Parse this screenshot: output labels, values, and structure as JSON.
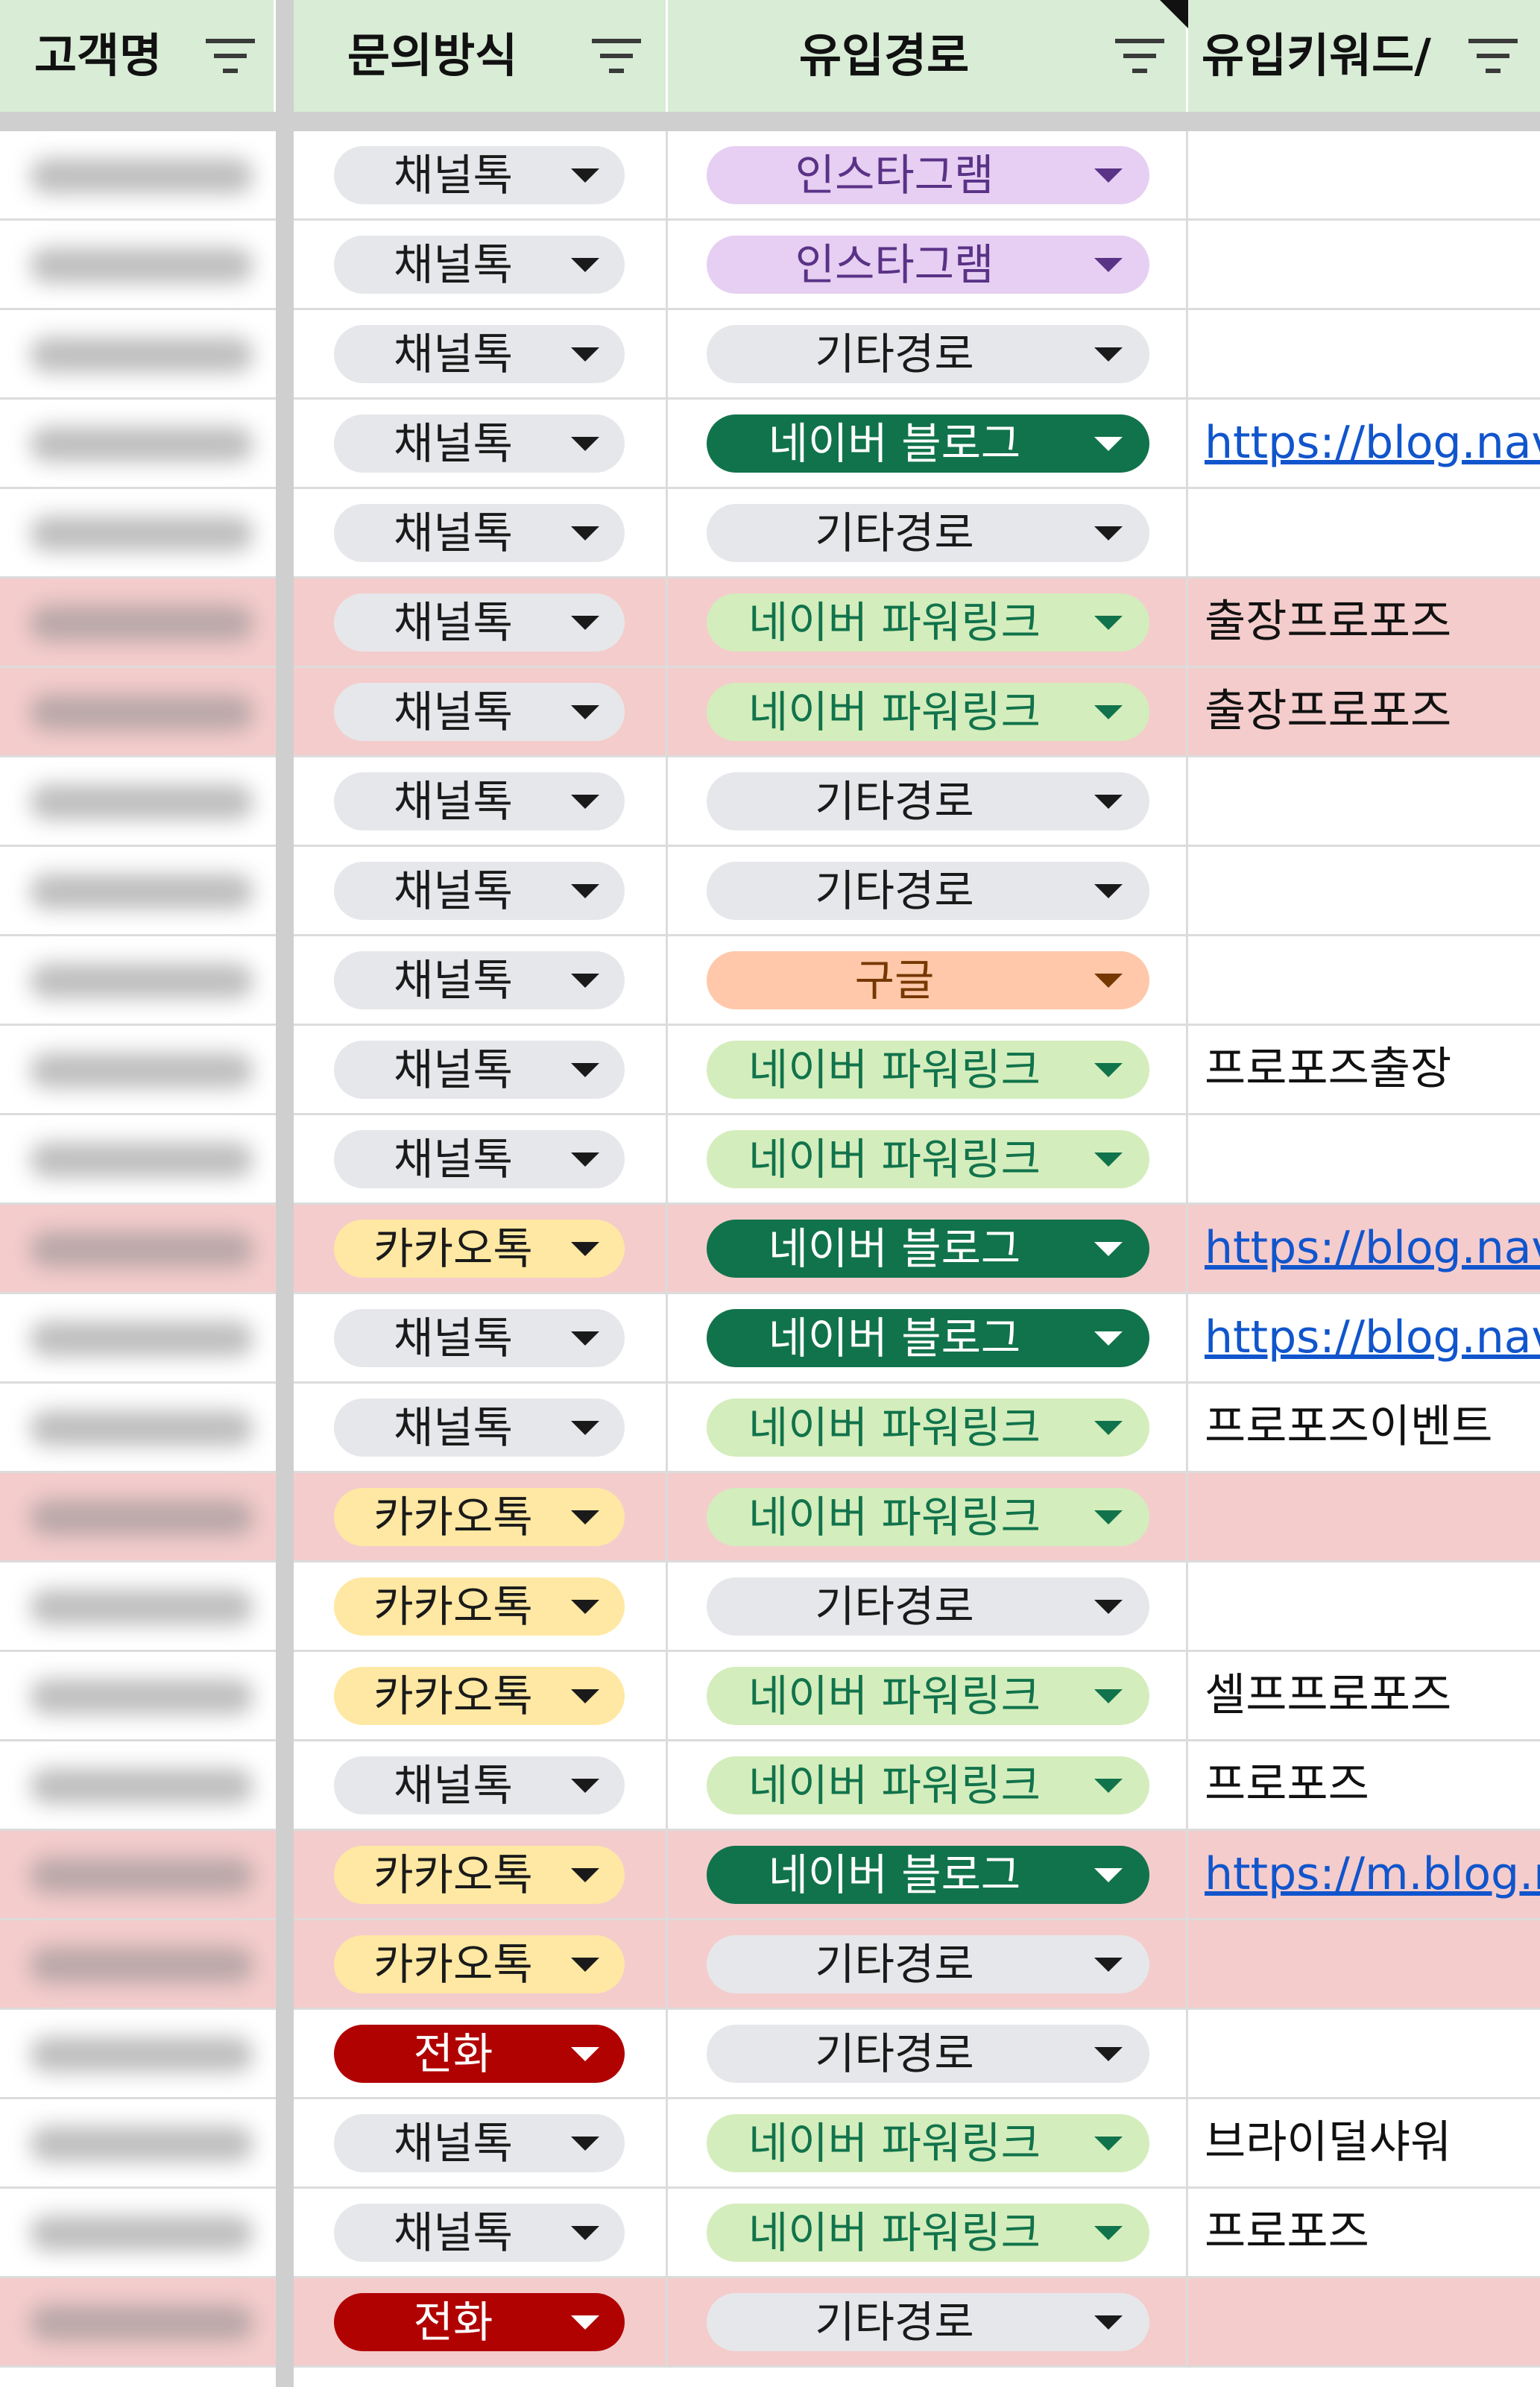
{
  "headers": [
    {
      "label": "고객명"
    },
    {
      "label": "문의방식"
    },
    {
      "label": "유입경로"
    },
    {
      "label": "유입키워드/"
    }
  ],
  "chip_colors": {
    "채널톡": {
      "bg": "#e6e7ea",
      "fg": "#1a1a1a",
      "arrow": "#1a1a1a"
    },
    "카카오톡": {
      "bg": "#ffe8a3",
      "fg": "#1a1a1a",
      "arrow": "#1a1a1a"
    },
    "전화": {
      "bg": "#b10202",
      "fg": "#ffffff",
      "arrow": "#ffffff"
    },
    "인스타그램": {
      "bg": "#e6cff2",
      "fg": "#5a3286",
      "arrow": "#5a3286"
    },
    "기타경로": {
      "bg": "#e6e7ea",
      "fg": "#1a1a1a",
      "arrow": "#1a1a1a"
    },
    "네이버 블로그": {
      "bg": "#11734b",
      "fg": "#ffffff",
      "arrow": "#ffffff"
    },
    "네이버 파워링크": {
      "bg": "#d4edbc",
      "fg": "#11734b",
      "arrow": "#11734b"
    },
    "구글": {
      "bg": "#ffc8aa",
      "fg": "#753800",
      "arrow": "#753800"
    }
  },
  "rows": [
    {
      "method": "채널톡",
      "source": "인스타그램",
      "keyword": "",
      "link": false,
      "highlight": false
    },
    {
      "method": "채널톡",
      "source": "인스타그램",
      "keyword": "",
      "link": false,
      "highlight": false
    },
    {
      "method": "채널톡",
      "source": "기타경로",
      "keyword": "",
      "link": false,
      "highlight": false
    },
    {
      "method": "채널톡",
      "source": "네이버 블로그",
      "keyword": "https://blog.nav",
      "link": true,
      "highlight": false
    },
    {
      "method": "채널톡",
      "source": "기타경로",
      "keyword": "",
      "link": false,
      "highlight": false
    },
    {
      "method": "채널톡",
      "source": "네이버 파워링크",
      "keyword": "출장프로포즈",
      "link": false,
      "highlight": true
    },
    {
      "method": "채널톡",
      "source": "네이버 파워링크",
      "keyword": "출장프로포즈",
      "link": false,
      "highlight": true
    },
    {
      "method": "채널톡",
      "source": "기타경로",
      "keyword": "",
      "link": false,
      "highlight": false
    },
    {
      "method": "채널톡",
      "source": "기타경로",
      "keyword": "",
      "link": false,
      "highlight": false
    },
    {
      "method": "채널톡",
      "source": "구글",
      "keyword": "",
      "link": false,
      "highlight": false
    },
    {
      "method": "채널톡",
      "source": "네이버 파워링크",
      "keyword": "프로포즈출장",
      "link": false,
      "highlight": false
    },
    {
      "method": "채널톡",
      "source": "네이버 파워링크",
      "keyword": "",
      "link": false,
      "highlight": false
    },
    {
      "method": "카카오톡",
      "source": "네이버 블로그",
      "keyword": "https://blog.nav",
      "link": true,
      "highlight": true
    },
    {
      "method": "채널톡",
      "source": "네이버 블로그",
      "keyword": "https://blog.nav",
      "link": true,
      "highlight": false
    },
    {
      "method": "채널톡",
      "source": "네이버 파워링크",
      "keyword": "프로포즈이벤트",
      "link": false,
      "highlight": false
    },
    {
      "method": "카카오톡",
      "source": "네이버 파워링크",
      "keyword": "",
      "link": false,
      "highlight": true
    },
    {
      "method": "카카오톡",
      "source": "기타경로",
      "keyword": "",
      "link": false,
      "highlight": false
    },
    {
      "method": "카카오톡",
      "source": "네이버 파워링크",
      "keyword": "셀프프로포즈",
      "link": false,
      "highlight": false
    },
    {
      "method": "채널톡",
      "source": "네이버 파워링크",
      "keyword": "프로포즈",
      "link": false,
      "highlight": false
    },
    {
      "method": "카카오톡",
      "source": "네이버 블로그",
      "keyword": "https://m.blog.r",
      "link": true,
      "highlight": true
    },
    {
      "method": "카카오톡",
      "source": "기타경로",
      "keyword": "",
      "link": false,
      "highlight": true
    },
    {
      "method": "전화",
      "source": "기타경로",
      "keyword": "",
      "link": false,
      "highlight": false
    },
    {
      "method": "채널톡",
      "source": "네이버 파워링크",
      "keyword": "브라이덜샤워",
      "link": false,
      "highlight": false
    },
    {
      "method": "채널톡",
      "source": "네이버 파워링크",
      "keyword": "프로포즈",
      "link": false,
      "highlight": false
    },
    {
      "method": "전화",
      "source": "기타경로",
      "keyword": "",
      "link": false,
      "highlight": true
    }
  ]
}
